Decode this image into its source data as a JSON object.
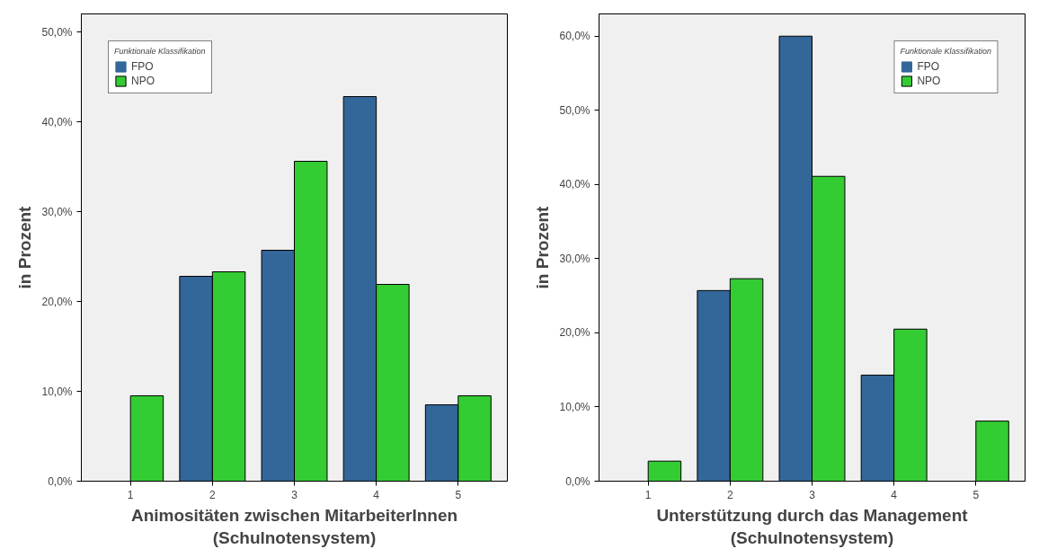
{
  "chart_data": [
    {
      "type": "bar",
      "xlabel": "Animositäten zwischen MitarbeiterInnen\n(Schulnotensystem)",
      "ylabel": "in Prozent",
      "legend_title": "Funktionale Klassifikation",
      "categories": [
        "1",
        "2",
        "3",
        "4",
        "5"
      ],
      "series": [
        {
          "name": "FPO",
          "color": "#336699",
          "values": [
            0,
            22.8,
            25.7,
            42.8,
            8.5
          ]
        },
        {
          "name": "NPO",
          "color": "#33cc33",
          "values": [
            9.5,
            23.3,
            35.6,
            21.9,
            9.5
          ]
        }
      ],
      "ylim": [
        0,
        52
      ],
      "yticks": [
        {
          "value": 0,
          "label": "0,0%"
        },
        {
          "value": 10,
          "label": "10,0%"
        },
        {
          "value": 20,
          "label": "20,0%"
        },
        {
          "value": 30,
          "label": "30,0%"
        },
        {
          "value": 40,
          "label": "40,0%"
        },
        {
          "value": 50,
          "label": "50,0%"
        }
      ],
      "grid": false,
      "legend": "top left"
    },
    {
      "type": "bar",
      "xlabel": "Unterstützung durch das Management\n(Schulnotensystem)",
      "ylabel": "in Prozent",
      "legend_title": "Funktionale Klassifikation",
      "categories": [
        "1",
        "2",
        "3",
        "4",
        "5"
      ],
      "series": [
        {
          "name": "FPO",
          "color": "#336699",
          "values": [
            0,
            25.7,
            60.0,
            14.3,
            0
          ]
        },
        {
          "name": "NPO",
          "color": "#33cc33",
          "values": [
            2.7,
            27.3,
            41.1,
            20.5,
            8.1
          ]
        }
      ],
      "ylim": [
        0,
        63
      ],
      "yticks": [
        {
          "value": 0,
          "label": "0,0%"
        },
        {
          "value": 10,
          "label": "10,0%"
        },
        {
          "value": 20,
          "label": "20,0%"
        },
        {
          "value": 30,
          "label": "30,0%"
        },
        {
          "value": 40,
          "label": "40,0%"
        },
        {
          "value": 50,
          "label": "50,0%"
        },
        {
          "value": 60,
          "label": "60,0%"
        }
      ],
      "grid": false,
      "legend": "top right"
    }
  ]
}
